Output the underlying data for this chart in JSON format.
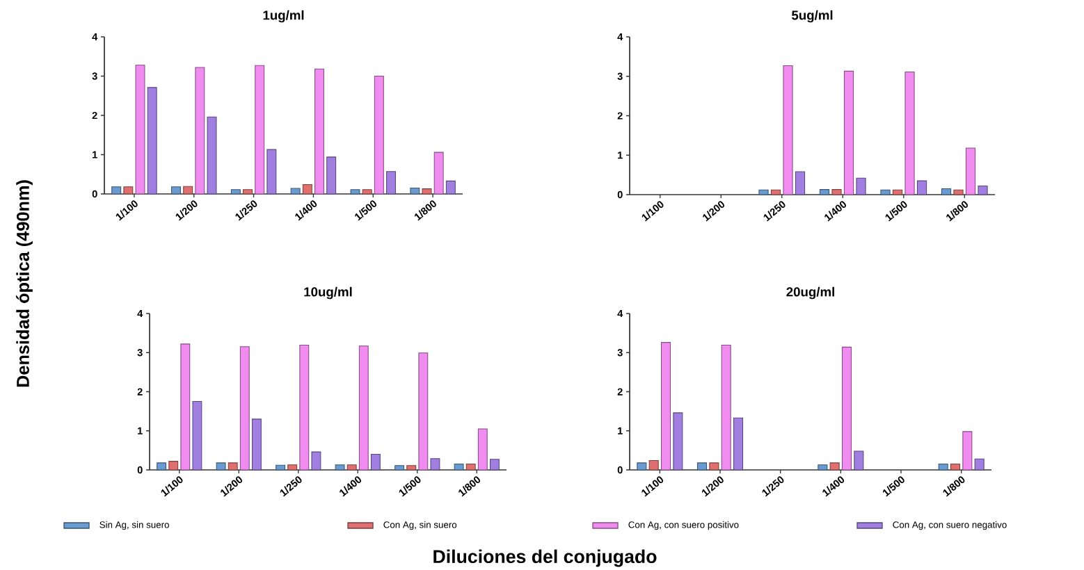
{
  "chart_data": [
    {
      "type": "bar",
      "title": "1ug/ml",
      "xlabel": "Diluciones del conjugado",
      "ylabel": "Densidad óptica (490nm)",
      "legend": "bottom",
      "categories": [
        "1/100",
        "1/200",
        "1/250",
        "1/400",
        "1/500",
        "1/800"
      ],
      "ylim": [
        0,
        4
      ],
      "yticks": [
        0,
        1,
        2,
        3,
        4
      ],
      "series": [
        {
          "name": "Sin Ag, sin suero",
          "color": "#6a9bd0",
          "values": [
            0.18,
            0.18,
            0.11,
            0.14,
            0.11,
            0.15
          ]
        },
        {
          "name": "Con Ag, sin suero",
          "color": "#e07070",
          "values": [
            0.18,
            0.19,
            0.11,
            0.24,
            0.11,
            0.13
          ]
        },
        {
          "name": "Con Ag, con suero positivo",
          "color": "#f08cf0",
          "values": [
            3.28,
            3.22,
            3.27,
            3.18,
            3.0,
            1.06
          ]
        },
        {
          "name": "Con Ag, con suero negativo",
          "color": "#a07fe0",
          "values": [
            2.71,
            1.96,
            1.13,
            0.94,
            0.57,
            0.33
          ]
        }
      ]
    },
    {
      "type": "bar",
      "title": "5ug/ml",
      "categories": [
        "1/100",
        "1/200",
        "1/250",
        "1/400",
        "1/500",
        "1/800"
      ],
      "ylim": [
        0,
        4
      ],
      "yticks": [
        0,
        1,
        2,
        3,
        4
      ],
      "series": [
        {
          "color": "#6a9bd0",
          "values": [
            null,
            null,
            0.12,
            0.13,
            0.12,
            0.15
          ]
        },
        {
          "color": "#e07070",
          "values": [
            null,
            null,
            0.12,
            0.13,
            0.12,
            0.12
          ]
        },
        {
          "color": "#f08cf0",
          "values": [
            null,
            null,
            3.27,
            3.13,
            3.11,
            1.18
          ]
        },
        {
          "color": "#a07fe0",
          "values": [
            null,
            null,
            0.58,
            0.42,
            0.35,
            0.22
          ]
        }
      ]
    },
    {
      "type": "bar",
      "title": "10ug/ml",
      "categories": [
        "1/100",
        "1/200",
        "1/250",
        "1/400",
        "1/500",
        "1/800"
      ],
      "ylim": [
        0,
        4
      ],
      "yticks": [
        0,
        1,
        2,
        3,
        4
      ],
      "series": [
        {
          "color": "#6a9bd0",
          "values": [
            0.18,
            0.18,
            0.12,
            0.13,
            0.11,
            0.15
          ]
        },
        {
          "color": "#e07070",
          "values": [
            0.22,
            0.18,
            0.13,
            0.13,
            0.11,
            0.15
          ]
        },
        {
          "color": "#f08cf0",
          "values": [
            3.22,
            3.15,
            3.19,
            3.17,
            2.99,
            1.05
          ]
        },
        {
          "color": "#a07fe0",
          "values": [
            1.75,
            1.3,
            0.46,
            0.4,
            0.29,
            0.27
          ]
        }
      ]
    },
    {
      "type": "bar",
      "title": "20ug/ml",
      "categories": [
        "1/100",
        "1/200",
        "1/250",
        "1/400",
        "1/500",
        "1/800"
      ],
      "ylim": [
        0,
        4
      ],
      "yticks": [
        0,
        1,
        2,
        3,
        4
      ],
      "series": [
        {
          "color": "#6a9bd0",
          "values": [
            0.18,
            0.18,
            null,
            0.13,
            null,
            0.15
          ]
        },
        {
          "color": "#e07070",
          "values": [
            0.24,
            0.18,
            null,
            0.18,
            null,
            0.15
          ]
        },
        {
          "color": "#f08cf0",
          "values": [
            3.26,
            3.19,
            null,
            3.14,
            null,
            0.98
          ]
        },
        {
          "color": "#a07fe0",
          "values": [
            1.46,
            1.33,
            null,
            0.48,
            null,
            0.28
          ]
        }
      ]
    }
  ]
}
